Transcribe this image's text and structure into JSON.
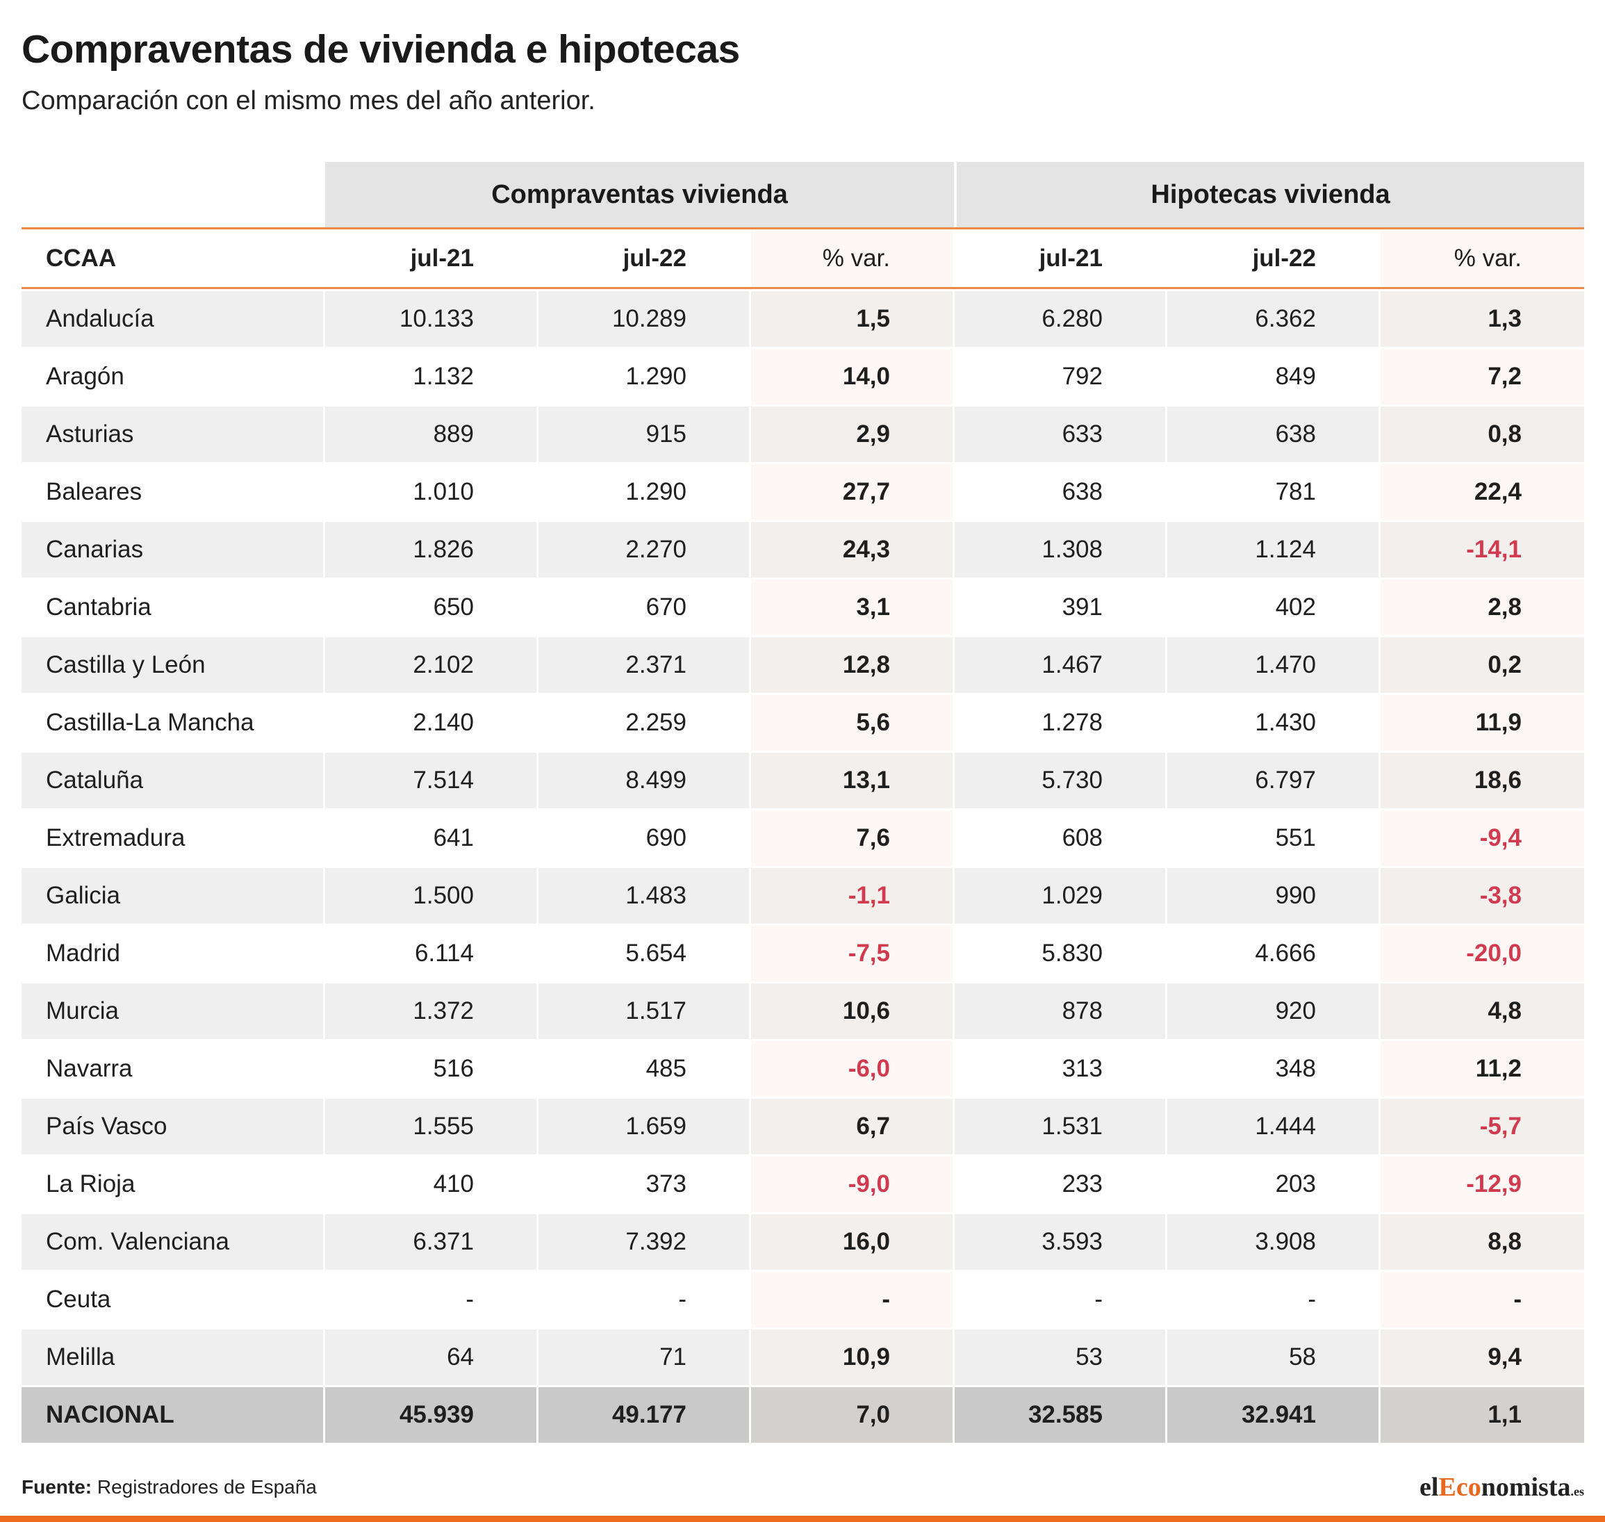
{
  "title": "Compraventas de vivienda e hipotecas",
  "subtitle": "Comparación con el mismo mes del año anterior.",
  "colors": {
    "accent": "#f08a4b",
    "negative": "#d13b50",
    "brand_orange": "#ec6b1c"
  },
  "chart_data": {
    "type": "table",
    "groups": [
      "Compraventas vivienda",
      "Hipotecas vivienda"
    ],
    "columns": [
      "CCAA",
      "jul-21",
      "jul-22",
      "% var.",
      "jul-21",
      "jul-22",
      "% var."
    ],
    "rows": [
      [
        "Andalucía",
        "10.133",
        "10.289",
        "1,5",
        "6.280",
        "6.362",
        "1,3"
      ],
      [
        "Aragón",
        "1.132",
        "1.290",
        "14,0",
        "792",
        "849",
        "7,2"
      ],
      [
        "Asturias",
        "889",
        "915",
        "2,9",
        "633",
        "638",
        "0,8"
      ],
      [
        "Baleares",
        "1.010",
        "1.290",
        "27,7",
        "638",
        "781",
        "22,4"
      ],
      [
        "Canarias",
        "1.826",
        "2.270",
        "24,3",
        "1.308",
        "1.124",
        "-14,1"
      ],
      [
        "Cantabria",
        "650",
        "670",
        "3,1",
        "391",
        "402",
        "2,8"
      ],
      [
        "Castilla y León",
        "2.102",
        "2.371",
        "12,8",
        "1.467",
        "1.470",
        "0,2"
      ],
      [
        "Castilla-La Mancha",
        "2.140",
        "2.259",
        "5,6",
        "1.278",
        "1.430",
        "11,9"
      ],
      [
        "Cataluña",
        "7.514",
        "8.499",
        "13,1",
        "5.730",
        "6.797",
        "18,6"
      ],
      [
        "Extremadura",
        "641",
        "690",
        "7,6",
        "608",
        "551",
        "-9,4"
      ],
      [
        "Galicia",
        "1.500",
        "1.483",
        "-1,1",
        "1.029",
        "990",
        "-3,8"
      ],
      [
        "Madrid",
        "6.114",
        "5.654",
        "-7,5",
        "5.830",
        "4.666",
        "-20,0"
      ],
      [
        "Murcia",
        "1.372",
        "1.517",
        "10,6",
        "878",
        "920",
        "4,8"
      ],
      [
        "Navarra",
        "516",
        "485",
        "-6,0",
        "313",
        "348",
        "11,2"
      ],
      [
        "País Vasco",
        "1.555",
        "1.659",
        "6,7",
        "1.531",
        "1.444",
        "-5,7"
      ],
      [
        "La Rioja",
        "410",
        "373",
        "-9,0",
        "233",
        "203",
        "-12,9"
      ],
      [
        "Com. Valenciana",
        "6.371",
        "7.392",
        "16,0",
        "3.593",
        "3.908",
        "8,8"
      ],
      [
        "Ceuta",
        "-",
        "-",
        "-",
        "-",
        "-",
        "-"
      ],
      [
        "Melilla",
        "64",
        "71",
        "10,9",
        "53",
        "58",
        "9,4"
      ]
    ],
    "total": [
      "NACIONAL",
      "45.939",
      "49.177",
      "7,0",
      "32.585",
      "32.941",
      "1,1"
    ]
  },
  "footer": {
    "source_label": "Fuente:",
    "source_text": " Registradores de España",
    "logo": {
      "part1": "el",
      "part2": "Eco",
      "part3": "nomista",
      "part4": ".es"
    }
  }
}
